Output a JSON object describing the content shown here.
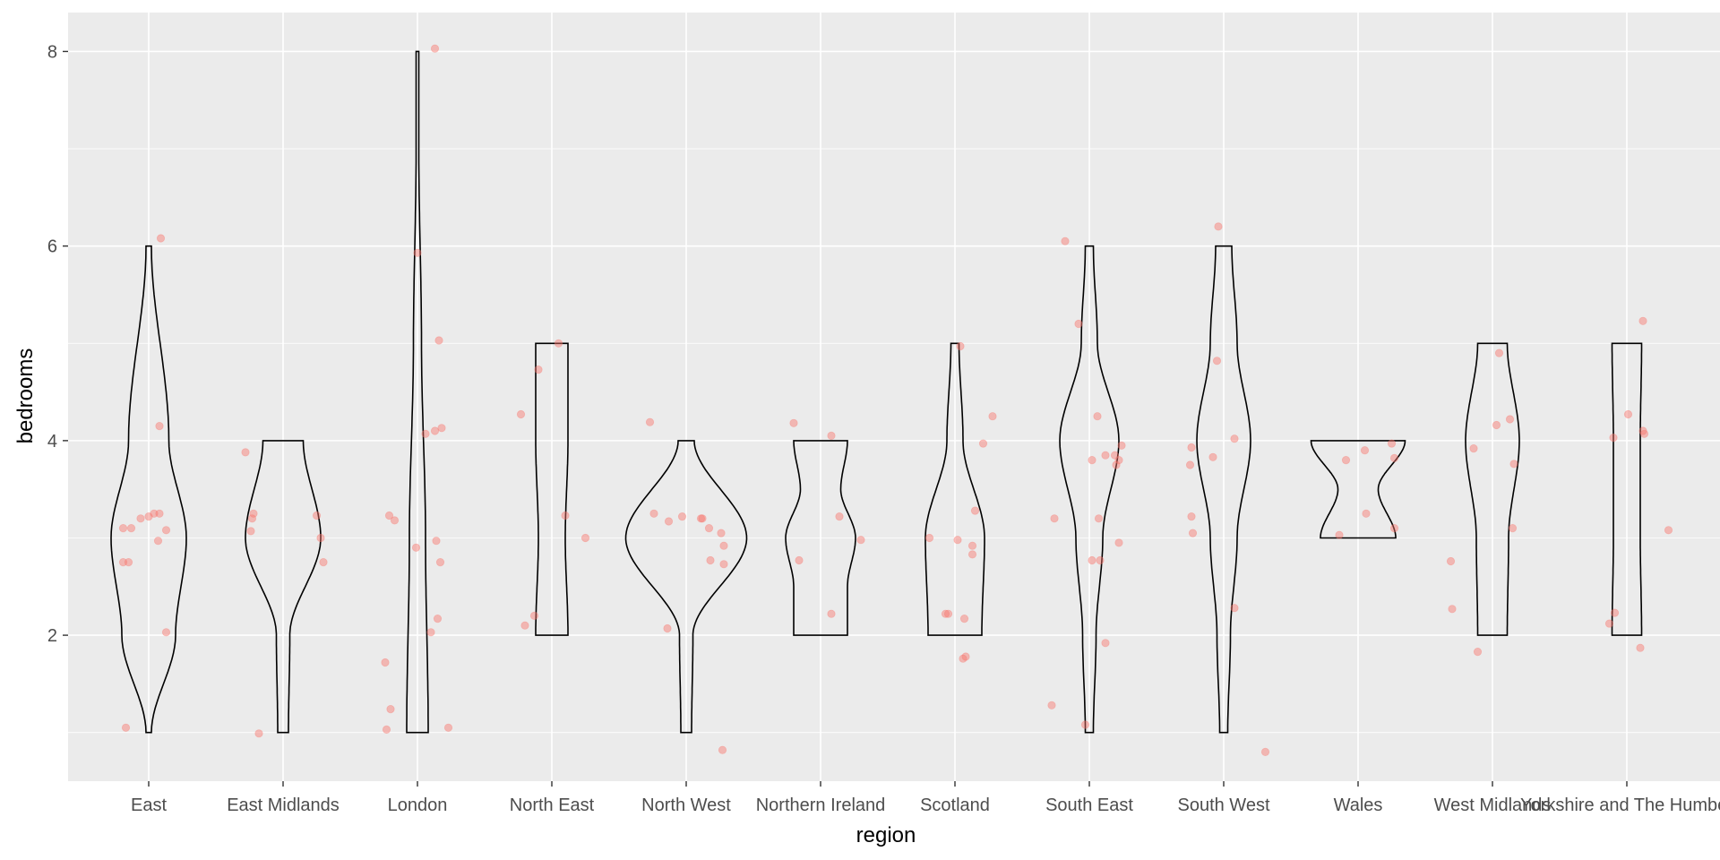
{
  "chart_data": {
    "type": "violin",
    "title": "",
    "xlabel": "region",
    "ylabel": "bedrooms",
    "ylim": [
      0.5,
      8.4
    ],
    "yticks": [
      2,
      4,
      6,
      8
    ],
    "grid": true,
    "legend": "none",
    "panel_color": "#ebebeb",
    "grid_color": "#ffffff",
    "violin_stroke": "#000000",
    "point_color": "#f8766d",
    "categories": [
      "East",
      "East Midlands",
      "London",
      "North East",
      "North West",
      "Northern Ireland",
      "Scotland",
      "South East",
      "South West",
      "Wales",
      "West Midlands",
      "Yorkshire and The Humber"
    ],
    "violins": [
      {
        "category": "East",
        "y": [
          1,
          2,
          3,
          4,
          6
        ],
        "halfwidth": [
          0.02,
          0.2,
          0.28,
          0.15,
          0.02
        ]
      },
      {
        "category": "East Midlands",
        "y": [
          1,
          2,
          3,
          4
        ],
        "halfwidth": [
          0.04,
          0.05,
          0.28,
          0.15
        ]
      },
      {
        "category": "London",
        "y": [
          1,
          3,
          5,
          7,
          8
        ],
        "halfwidth": [
          0.08,
          0.06,
          0.03,
          0.01,
          0.01
        ]
      },
      {
        "category": "North East",
        "y": [
          2,
          3,
          4,
          5
        ],
        "halfwidth": [
          0.12,
          0.1,
          0.12,
          0.12
        ]
      },
      {
        "category": "North West",
        "y": [
          1,
          2,
          3,
          4
        ],
        "halfwidth": [
          0.04,
          0.05,
          0.45,
          0.06
        ]
      },
      {
        "category": "Northern Ireland",
        "y": [
          2,
          2.5,
          3,
          3.5,
          4
        ],
        "halfwidth": [
          0.2,
          0.2,
          0.26,
          0.15,
          0.2
        ]
      },
      {
        "category": "Scotland",
        "y": [
          2,
          3,
          4,
          5
        ],
        "halfwidth": [
          0.2,
          0.22,
          0.06,
          0.03
        ]
      },
      {
        "category": "South East",
        "y": [
          1,
          2,
          3,
          4,
          5,
          6
        ],
        "halfwidth": [
          0.03,
          0.05,
          0.1,
          0.22,
          0.06,
          0.03
        ]
      },
      {
        "category": "South West",
        "y": [
          1,
          2,
          3,
          4,
          5,
          6
        ],
        "halfwidth": [
          0.03,
          0.05,
          0.1,
          0.2,
          0.1,
          0.06
        ]
      },
      {
        "category": "Wales",
        "y": [
          3,
          3.5,
          4
        ],
        "halfwidth": [
          0.28,
          0.15,
          0.35
        ]
      },
      {
        "category": "West Midlands",
        "y": [
          2,
          3,
          4,
          5
        ],
        "halfwidth": [
          0.11,
          0.12,
          0.2,
          0.11
        ]
      },
      {
        "category": "Yorkshire and The Humber",
        "y": [
          2,
          3,
          4,
          5
        ],
        "halfwidth": [
          0.11,
          0.1,
          0.1,
          0.11
        ]
      }
    ],
    "points": [
      {
        "category": "East",
        "values": [
          1.05,
          2.03,
          2.75,
          2.75,
          2.97,
          3.08,
          3.1,
          3.1,
          3.2,
          3.22,
          3.25,
          3.25,
          4.15,
          6.08
        ]
      },
      {
        "category": "East Midlands",
        "values": [
          0.99,
          2.75,
          3.0,
          3.07,
          3.2,
          3.23,
          3.25,
          3.88
        ]
      },
      {
        "category": "London",
        "values": [
          1.03,
          1.05,
          1.24,
          1.72,
          2.03,
          2.17,
          2.75,
          2.9,
          2.97,
          3.18,
          3.23,
          4.07,
          4.1,
          4.13,
          5.03,
          5.93,
          8.03
        ]
      },
      {
        "category": "North East",
        "values": [
          2.1,
          2.2,
          3.0,
          3.23,
          4.27,
          4.73,
          5.0
        ]
      },
      {
        "category": "North West",
        "values": [
          0.82,
          2.07,
          2.73,
          2.77,
          2.92,
          3.05,
          3.1,
          3.17,
          3.2,
          3.2,
          3.22,
          3.25,
          4.19
        ]
      },
      {
        "category": "Northern Ireland",
        "values": [
          2.22,
          2.77,
          2.98,
          3.22,
          4.05,
          4.18
        ]
      },
      {
        "category": "Scotland",
        "values": [
          1.76,
          1.78,
          2.17,
          2.22,
          2.22,
          2.83,
          2.92,
          2.98,
          3.0,
          3.28,
          3.97,
          4.25,
          4.97
        ]
      },
      {
        "category": "South East",
        "values": [
          1.08,
          1.28,
          1.92,
          2.77,
          2.77,
          2.95,
          3.2,
          3.2,
          3.75,
          3.8,
          3.8,
          3.85,
          3.85,
          3.95,
          4.25,
          5.2,
          6.05
        ]
      },
      {
        "category": "South West",
        "values": [
          0.8,
          2.28,
          3.05,
          3.22,
          3.75,
          3.83,
          3.93,
          4.02,
          4.82,
          6.2
        ]
      },
      {
        "category": "Wales",
        "values": [
          3.03,
          3.1,
          3.25,
          3.8,
          3.82,
          3.9,
          3.97
        ]
      },
      {
        "category": "West Midlands",
        "values": [
          1.83,
          2.27,
          2.76,
          3.1,
          3.76,
          3.92,
          4.16,
          4.22,
          4.9
        ]
      },
      {
        "category": "Yorkshire and The Humber",
        "values": [
          1.87,
          2.12,
          2.23,
          3.08,
          4.03,
          4.07,
          4.1,
          4.27,
          5.23
        ]
      }
    ],
    "point_dx": [
      [
        -0.17,
        0.13,
        -0.15,
        -0.19,
        0.07,
        0.13,
        -0.19,
        -0.13,
        -0.06,
        0.0,
        0.04,
        0.08,
        0.08,
        0.09
      ],
      [
        -0.18,
        0.3,
        0.28,
        -0.24,
        -0.23,
        0.25,
        -0.22,
        -0.28
      ],
      [
        -0.23,
        0.23,
        -0.2,
        -0.24,
        0.1,
        0.15,
        0.17,
        -0.01,
        0.14,
        -0.17,
        -0.21,
        0.06,
        0.13,
        0.18,
        0.16,
        0.0,
        0.13
      ],
      [
        -0.2,
        -0.13,
        0.25,
        0.1,
        -0.23,
        -0.1,
        0.05
      ],
      [
        0.27,
        -0.14,
        0.28,
        0.18,
        0.28,
        0.26,
        0.17,
        -0.13,
        0.12,
        0.11,
        -0.03,
        -0.24,
        -0.27
      ],
      [
        0.08,
        -0.16,
        0.3,
        0.14,
        0.08,
        -0.2
      ],
      [
        0.06,
        0.08,
        0.07,
        -0.07,
        -0.05,
        0.13,
        0.13,
        0.02,
        -0.19,
        0.15,
        0.21,
        0.28,
        0.04
      ],
      [
        -0.03,
        -0.28,
        0.12,
        0.08,
        0.02,
        0.22,
        -0.26,
        0.07,
        0.2,
        0.02,
        0.22,
        0.19,
        0.12,
        0.24,
        0.06,
        -0.08,
        -0.18
      ],
      [
        0.31,
        0.08,
        -0.23,
        -0.24,
        -0.25,
        -0.08,
        -0.24,
        0.08,
        -0.05,
        -0.04
      ],
      [
        -0.14,
        0.27,
        0.06,
        -0.09,
        0.27,
        0.05,
        0.25
      ],
      [
        -0.11,
        -0.3,
        -0.31,
        0.15,
        0.16,
        -0.14,
        0.03,
        0.13,
        0.05
      ],
      [
        0.1,
        -0.13,
        -0.09,
        0.31,
        -0.1,
        0.13,
        0.12,
        0.01,
        0.12
      ]
    ]
  }
}
